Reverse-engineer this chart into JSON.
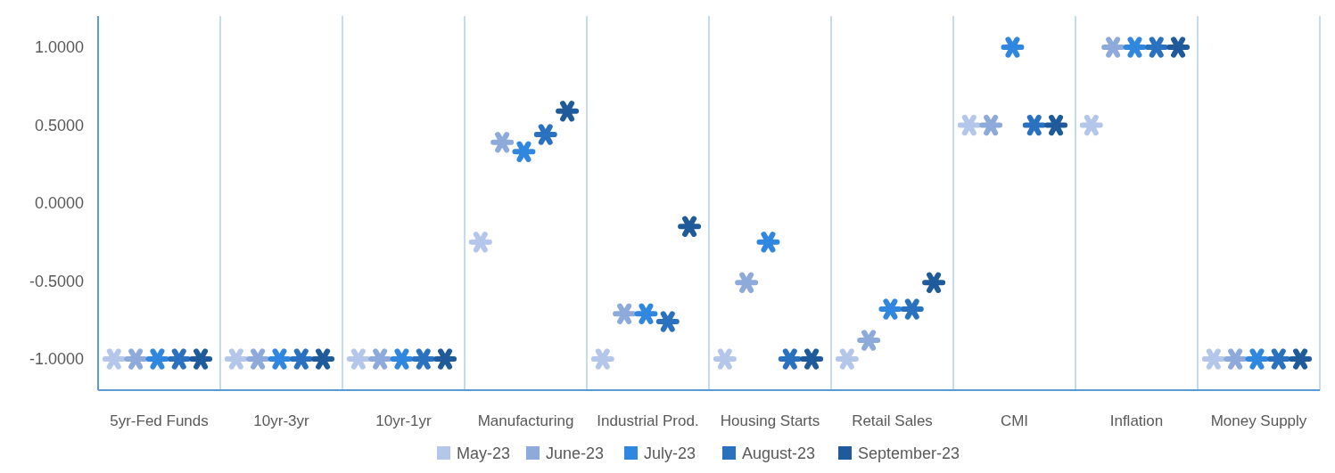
{
  "chart_data": {
    "type": "scatter",
    "categories": [
      "5yr-Fed Funds",
      "10yr-3yr",
      "10yr-1yr",
      "Manufacturing",
      "Industrial Prod.",
      "Housing Starts",
      "Retail Sales",
      "CMI",
      "Inflation",
      "Money Supply"
    ],
    "series": [
      {
        "name": "May-23",
        "color": "#b4c6ea",
        "values": [
          -1,
          -1,
          -1,
          -0.25,
          -1,
          -1,
          -1,
          0.5,
          0.5,
          -1
        ]
      },
      {
        "name": "June-23",
        "color": "#8eaadb",
        "values": [
          -1,
          -1,
          -1,
          0.39,
          -0.71,
          -0.51,
          -0.88,
          0.5,
          1,
          -1
        ]
      },
      {
        "name": "July-23",
        "color": "#2f87e0",
        "values": [
          -1,
          -1,
          -1,
          0.33,
          -0.71,
          -0.25,
          -0.68,
          1,
          1,
          -1
        ]
      },
      {
        "name": "August-23",
        "color": "#2a72c0",
        "values": [
          -1,
          -1,
          -1,
          0.44,
          -0.76,
          -1,
          -0.68,
          0.5,
          1,
          -1
        ]
      },
      {
        "name": "September-23",
        "color": "#1f5b9a",
        "values": [
          -1,
          -1,
          -1,
          0.59,
          -0.15,
          -1,
          -0.51,
          0.5,
          1,
          -1
        ]
      }
    ],
    "ylim": [
      -1.2,
      1.2
    ],
    "yticks": [
      {
        "value": -1,
        "label": "-1.0000"
      },
      {
        "value": -0.5,
        "label": "-0.5000"
      },
      {
        "value": 0,
        "label": "0.0000"
      },
      {
        "value": 0.5,
        "label": "0.5000"
      },
      {
        "value": 1,
        "label": "1.0000"
      }
    ],
    "grid": "x",
    "legend": "bottom",
    "marker": "cross"
  }
}
